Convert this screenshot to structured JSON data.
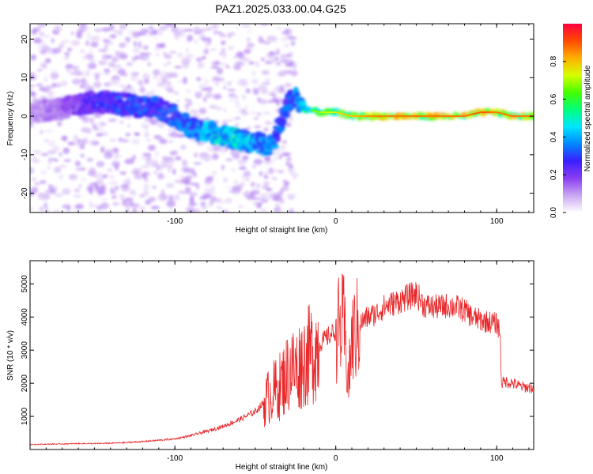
{
  "title": "PAZ1.2025.033.00.04.G25",
  "chart_data": [
    {
      "type": "heatmap",
      "title": "",
      "xlabel": "Height of straight line (km)",
      "ylabel": "Frequency (Hz)",
      "xlim": [
        -190,
        123
      ],
      "ylim": [
        -25,
        24
      ],
      "xticks": [
        -100,
        0,
        100
      ],
      "yticks": [
        -20,
        -10,
        0,
        10,
        20
      ],
      "colorbar": {
        "label": "Normalized spectral amplitude",
        "range": [
          0,
          1
        ],
        "ticks": [
          "0.0",
          "0.2",
          "0.4",
          "0.6",
          "0.8"
        ],
        "colormap": [
          "#ffffff",
          "#c9a6f3",
          "#8a3df0",
          "#3a1fff",
          "#0088ff",
          "#00e5ff",
          "#00ff7a",
          "#46ff00",
          "#d6ff00",
          "#ffb000",
          "#ff4a00",
          "#ff0040"
        ]
      },
      "ridge": {
        "x": [
          -190,
          -170,
          -150,
          -130,
          -110,
          -100,
          -90,
          -80,
          -70,
          -60,
          -50,
          -40,
          -30,
          -25,
          -20,
          -10,
          0,
          10,
          20,
          40,
          60,
          80,
          90,
          100,
          110,
          123
        ],
        "y": [
          1,
          2,
          4,
          3,
          2,
          0,
          -3,
          -4,
          -5,
          -6,
          -7,
          -8,
          3,
          5,
          2,
          1,
          1,
          0,
          0,
          0,
          0,
          0,
          1,
          1,
          0,
          0
        ]
      },
      "ridge_amplitude": [
        0.1,
        0.15,
        0.25,
        0.3,
        0.3,
        0.3,
        0.35,
        0.4,
        0.45,
        0.45,
        0.4,
        0.35,
        0.3,
        0.35,
        0.45,
        0.55,
        0.6,
        0.65,
        0.7,
        0.72,
        0.72,
        0.72,
        0.75,
        0.72,
        0.72,
        0.72
      ]
    },
    {
      "type": "line",
      "title": "",
      "xlabel": "Height of straight line (km)",
      "ylabel": "SNR (10 * v/v)",
      "xlim": [
        -190,
        123
      ],
      "ylim": [
        0,
        5700
      ],
      "xticks": [
        -100,
        0,
        100
      ],
      "yticks": [
        1000,
        2000,
        3000,
        4000,
        5000
      ],
      "color": "#e8282a",
      "x": [
        -190,
        -180,
        -170,
        -160,
        -150,
        -140,
        -130,
        -120,
        -110,
        -100,
        -90,
        -80,
        -70,
        -60,
        -50,
        -45,
        -40,
        -35,
        -30,
        -28,
        -25,
        -20,
        -15,
        -10,
        -5,
        0,
        5,
        8,
        10,
        15,
        20,
        25,
        30,
        35,
        40,
        45,
        50,
        55,
        60,
        65,
        70,
        75,
        80,
        85,
        90,
        95,
        100,
        102,
        103,
        105,
        110,
        115,
        123
      ],
      "y": [
        150,
        160,
        170,
        180,
        180,
        190,
        210,
        240,
        280,
        320,
        420,
        550,
        700,
        900,
        1150,
        1400,
        1700,
        1900,
        2300,
        2500,
        2400,
        2700,
        2900,
        3200,
        3400,
        3600,
        3700,
        2000,
        3300,
        3800,
        4000,
        4100,
        4300,
        4400,
        4500,
        4600,
        4700,
        4350,
        4300,
        4300,
        4350,
        4300,
        4200,
        4000,
        3900,
        3850,
        3800,
        3600,
        2000,
        2050,
        2000,
        1900,
        1850
      ]
    }
  ]
}
